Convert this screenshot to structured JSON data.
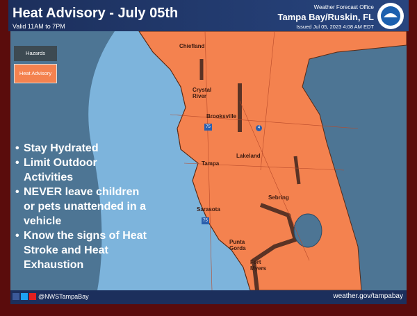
{
  "header": {
    "title": "Heat Advisory - July 05th",
    "valid": "Valid 11AM to 7PM",
    "office_label": "Weather Forecast Office",
    "office": "Tampa Bay/Ruskin, FL",
    "issued": "Issued Jul 05, 2023 4:08 AM EDT"
  },
  "legend": {
    "title": "Hazards",
    "items": [
      "Heat Advisory"
    ]
  },
  "tips": [
    "Stay Hydrated",
    "Limit Outdoor Activities",
    "NEVER leave children or pets unattended in a vehicle",
    "Know the signs of Heat Stroke and Heat Exhaustion"
  ],
  "cities": [
    "Chiefland",
    "Crystal River",
    "Brooksville",
    "Tampa",
    "Lakeland",
    "Sebring",
    "Sarasota",
    "Punta Gorda",
    "Fort Myers"
  ],
  "highways": [
    "75",
    "4",
    "75"
  ],
  "footer": {
    "handle": "@NWSTampaBay",
    "website": "weather.gov/tampabay"
  }
}
